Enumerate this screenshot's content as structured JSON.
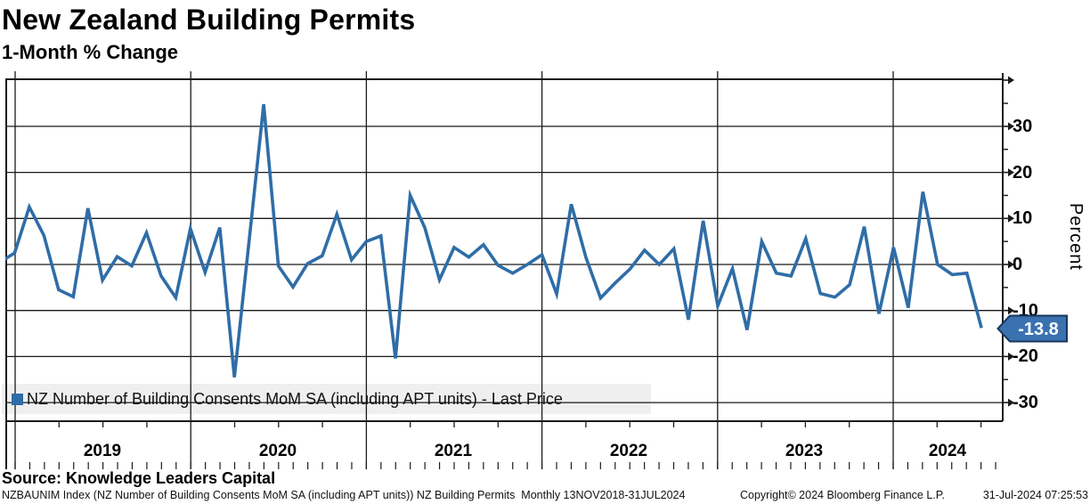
{
  "header": {
    "title": "New Zealand Building Permits",
    "subtitle": "1-Month % Change"
  },
  "legend": {
    "marker_color": "#2F6DA7",
    "label": "NZ Number of Building Consents MoM SA (including APT units) - Last Price"
  },
  "y_axis": {
    "label": "Percent",
    "major_tick_labels": [
      "30",
      "20",
      "10",
      "0",
      "-10",
      "-20",
      "-30"
    ],
    "major_tick_values": [
      30,
      20,
      10,
      0,
      -10,
      -20,
      -30
    ],
    "minor_tick_values": [
      35,
      25,
      15,
      5,
      -5,
      -15,
      -25
    ]
  },
  "x_axis": {
    "year_labels": [
      "2019",
      "2020",
      "2021",
      "2022",
      "2023",
      "2024"
    ]
  },
  "last_price_badge": {
    "text": "-13.8",
    "fill": "#3A72B0",
    "border": "#16365C",
    "text_color": "#ffffff"
  },
  "footer": {
    "source": "Source: Knowledge Leaders Capital",
    "description": "NZBAUNIM Index (NZ Number of Building Consents MoM SA (including APT units)) NZ Building Permits  Monthly 13NOV2018-31JUL2024",
    "copyright": "Copyright© 2024 Bloomberg Finance L.P.",
    "timestamp": "31-Jul-2024 07:25:53"
  },
  "chart_data": {
    "type": "line",
    "title": "New Zealand Building Permits",
    "subtitle": "1-Month % Change",
    "ylabel": "Percent",
    "ylim": [
      -34,
      40.5
    ],
    "grid": true,
    "legend_position": "bottom-left",
    "line_color": "#2F6DA7",
    "x_months": [
      "2018-11",
      "2018-12",
      "2019-01",
      "2019-02",
      "2019-03",
      "2019-04",
      "2019-05",
      "2019-06",
      "2019-07",
      "2019-08",
      "2019-09",
      "2019-10",
      "2019-11",
      "2019-12",
      "2020-01",
      "2020-02",
      "2020-03",
      "2020-04",
      "2020-05",
      "2020-06",
      "2020-07",
      "2020-08",
      "2020-09",
      "2020-10",
      "2020-11",
      "2020-12",
      "2021-01",
      "2021-02",
      "2021-03",
      "2021-04",
      "2021-05",
      "2021-06",
      "2021-07",
      "2021-08",
      "2021-09",
      "2021-10",
      "2021-11",
      "2021-12",
      "2022-01",
      "2022-02",
      "2022-03",
      "2022-04",
      "2022-05",
      "2022-06",
      "2022-07",
      "2022-08",
      "2022-09",
      "2022-10",
      "2022-11",
      "2022-12",
      "2023-01",
      "2023-02",
      "2023-03",
      "2023-04",
      "2023-05",
      "2023-06",
      "2023-07",
      "2023-08",
      "2023-09",
      "2023-10",
      "2023-11",
      "2023-12",
      "2024-01",
      "2024-02",
      "2024-03",
      "2024-04",
      "2024-05",
      "2024-06"
    ],
    "series": [
      {
        "name": "NZ Number of Building Consents MoM SA (including APT units) - Last Price",
        "color": "#2F6DA7",
        "values": [
          0.5,
          2.5,
          12.5,
          6.3,
          -5.5,
          -7.0,
          12.2,
          -3.4,
          1.7,
          -0.3,
          6.9,
          -2.5,
          -7.2,
          7.8,
          -1.7,
          8.0,
          -24.5,
          4.9,
          34.8,
          -0.3,
          -4.9,
          0.2,
          1.9,
          10.9,
          1.0,
          5.0,
          6.2,
          -20.4,
          15.0,
          8.0,
          -3.3,
          3.7,
          1.6,
          4.3,
          -0.2,
          -1.9,
          0.0,
          2.1,
          -6.4,
          13.1,
          1.5,
          -7.3,
          -4.0,
          -1.0,
          3.1,
          0.0,
          3.4,
          -12.0,
          9.5,
          -9.0,
          -0.9,
          -14.2,
          5.0,
          -1.9,
          -2.5,
          5.6,
          -6.3,
          -7.1,
          -4.4,
          8.2,
          -10.7,
          3.7,
          -9.4,
          15.8,
          0.0,
          -2.2,
          -1.9,
          -13.8
        ]
      }
    ],
    "last_value": -13.8
  }
}
